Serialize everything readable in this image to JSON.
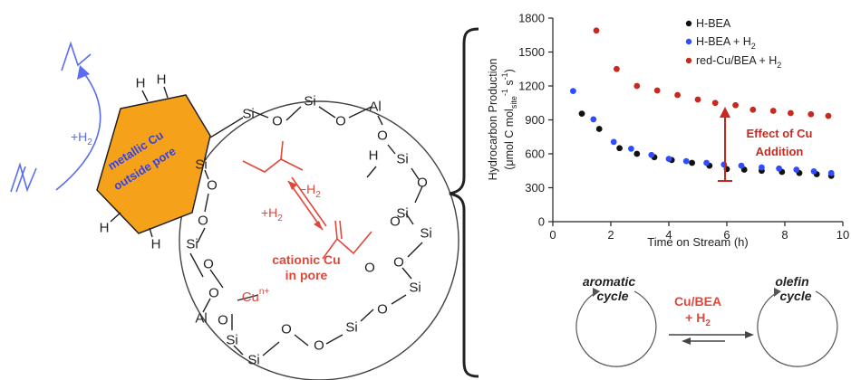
{
  "left_diagram": {
    "metal_label_line1": "metallic Cu",
    "metal_label_line2": "outside pore",
    "h2_label": "+H",
    "h2_sub": "2",
    "cationic_line1": "cationic Cu",
    "cationic_line2": "in pore",
    "cu_label": "Cu",
    "cu_sup": "n+",
    "minus_h2": "−H",
    "plus_h2": "+H",
    "sub2": "2",
    "atoms": {
      "si": "Si",
      "o": "O",
      "al": "Al",
      "h": "H"
    }
  },
  "chart_data": {
    "type": "scatter",
    "xlabel": "Time on Stream (h)",
    "ylabel_line1": "Hydrocarbon Production",
    "ylabel_line2": "(μmol C mol",
    "ylabel_sub": "site",
    "ylabel_tail": " s",
    "ylabel_sup1": "-1",
    "ylabel_sup2": "-1",
    "ylabel_close": ")",
    "xlim": [
      0,
      10
    ],
    "ylim": [
      0,
      1800
    ],
    "xticks": [
      0,
      2,
      4,
      6,
      8,
      10
    ],
    "yticks": [
      0,
      300,
      600,
      900,
      1200,
      1500,
      1800
    ],
    "legend_position": "top-right",
    "series": [
      {
        "name": "H-BEA",
        "color": "#111111",
        "x": [
          1.0,
          1.6,
          2.3,
          2.9,
          3.5,
          4.1,
          4.8,
          5.4,
          6.0,
          6.6,
          7.2,
          7.9,
          8.5,
          9.1,
          9.6
        ],
        "y": [
          955,
          820,
          650,
          600,
          570,
          545,
          520,
          495,
          465,
          460,
          450,
          440,
          430,
          420,
          405
        ]
      },
      {
        "name": "H-BEA + H",
        "name_sub": "2",
        "color": "#2f4dff",
        "x": [
          0.7,
          1.4,
          2.1,
          2.7,
          3.4,
          4.0,
          4.6,
          5.3,
          5.9,
          6.5,
          7.2,
          7.8,
          8.4,
          9.0,
          9.6
        ],
        "y": [
          1155,
          905,
          705,
          645,
          590,
          555,
          535,
          520,
          505,
          495,
          480,
          470,
          460,
          445,
          430
        ]
      },
      {
        "name": "red-Cu/BEA + H",
        "name_sub": "2",
        "color": "#c8281e",
        "x": [
          1.5,
          2.2,
          2.9,
          3.6,
          4.3,
          5.0,
          5.6,
          6.3,
          6.9,
          7.6,
          8.2,
          8.9,
          9.5
        ],
        "y": [
          1690,
          1350,
          1200,
          1160,
          1120,
          1080,
          1050,
          1030,
          990,
          980,
          960,
          950,
          935
        ]
      }
    ],
    "annotation_line1": "Effect of Cu",
    "annotation_line2": "Addition"
  },
  "bottom_scheme": {
    "left_line1": "aromatic",
    "left_line2": "cycle",
    "right_line1": "olefin",
    "right_line2": "cycle",
    "center_line1": "Cu/BEA",
    "center_line2": "+ H",
    "center_sub": "2"
  },
  "colors": {
    "red": "#e0483c",
    "blue": "#5a6cf0",
    "orange": "#f5a21a"
  }
}
